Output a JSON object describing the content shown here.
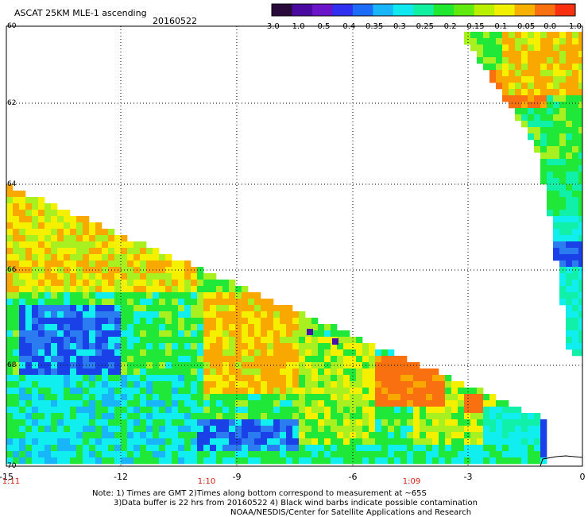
{
  "header": {
    "title": "ASCAT 25KM MLE-1 ascending",
    "date": "20160522"
  },
  "colorbar": {
    "labels": [
      "-3.0",
      "-1.0",
      "-0.5",
      "-0.4",
      "-0.35",
      "-0.3",
      "-0.25",
      "-0.2",
      "-0.15",
      "-0.1",
      "-0.05",
      "0.0",
      "1.0"
    ],
    "colors": [
      "#2a0a3a",
      "#4a0aa0",
      "#6a16c8",
      "#3030f0",
      "#1c6cf8",
      "#18b6f8",
      "#10e8f0",
      "#10f0a0",
      "#20e830",
      "#60ea10",
      "#b8f000",
      "#f0f000",
      "#f8b000",
      "#f87010",
      "#f83010"
    ]
  },
  "axes": {
    "lat_labels": [
      "60",
      "62",
      "64",
      "66",
      "68",
      "70"
    ],
    "lon_labels": [
      "-15",
      "-12",
      "-9",
      "-6",
      "-3",
      "0"
    ]
  },
  "times": [
    "1:11",
    "1:10",
    "1:09"
  ],
  "notes": [
    "Note: 1) Times are GMT 2)Times along bottom correspond to measurement at ~65S",
    "3)Data buffer is 22 hrs from 20160522 4) Black wind barbs indicate possible contamination",
    "NOAA/NESDIS/Center for Satellite Applications and Research"
  ],
  "palette": {
    "cyan": "#10eef0",
    "blue": "#1a40e8",
    "green": "#20e838",
    "yellowgreen": "#a8f020",
    "yellow": "#f4f000",
    "orange": "#f8a800",
    "redorange": "#f87010",
    "purple": "#4a10a8",
    "teal": "#10f0a8"
  }
}
